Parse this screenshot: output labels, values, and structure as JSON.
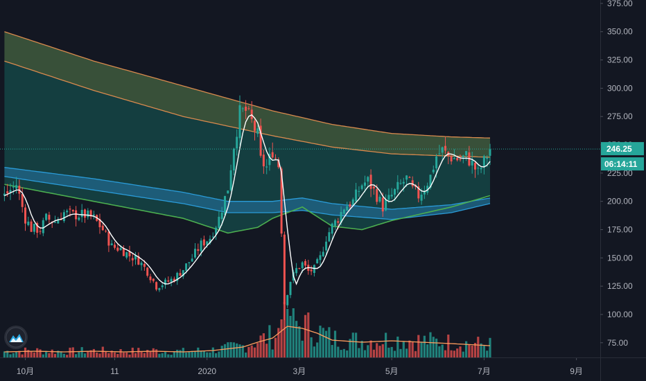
{
  "chart_data": {
    "type": "candlestick",
    "title": "",
    "xlabel": "",
    "ylabel": "",
    "ylim": [
      62,
      378
    ],
    "y_ticks": [
      "375.00",
      "350.00",
      "325.00",
      "300.00",
      "275.00",
      "250.00",
      "225.00",
      "200.00",
      "175.00",
      "150.00",
      "125.00",
      "100.00",
      "75.00"
    ],
    "y_tick_values": [
      375,
      350,
      325,
      300,
      275,
      250,
      225,
      200,
      175,
      150,
      125,
      100,
      75
    ],
    "x_ticks": [
      {
        "label": "10月",
        "t": 7
      },
      {
        "label": "11",
        "t": 37
      },
      {
        "label": "2020",
        "t": 68
      },
      {
        "label": "3月",
        "t": 99
      },
      {
        "label": "5月",
        "t": 130
      },
      {
        "label": "7月",
        "t": 161
      },
      {
        "label": "9月",
        "t": 192
      }
    ],
    "last_price": {
      "label": "246.25",
      "value": 246.25
    },
    "countdown": "06:14:11",
    "grid": false,
    "colors": {
      "background": "#131722",
      "up": "#26a69a",
      "down": "#ef5350",
      "upper_band_fill": "#3f5a3d",
      "upper_band_line": "#d98a4e",
      "mid_fill": "#154545",
      "blue_band_fill": "#1e5f7e",
      "blue_band_line": "#2a9bd8",
      "green_band_line": "#4caf50",
      "ma_line": "#ffffff",
      "volume_ma": "#ff9e5e",
      "price_badge": "#26a69a"
    },
    "series": [
      {
        "role": "close",
        "points": [
          [
            0,
            205
          ],
          [
            4,
            215
          ],
          [
            7,
            185
          ],
          [
            9,
            176
          ],
          [
            12,
            175
          ],
          [
            14,
            185
          ],
          [
            17,
            182
          ],
          [
            20,
            190
          ],
          [
            23,
            188
          ],
          [
            27,
            188
          ],
          [
            30,
            185
          ],
          [
            33,
            175
          ],
          [
            36,
            160
          ],
          [
            39,
            158
          ],
          [
            42,
            152
          ],
          [
            45,
            148
          ],
          [
            48,
            138
          ],
          [
            51,
            125
          ],
          [
            54,
            128
          ],
          [
            57,
            132
          ],
          [
            60,
            140
          ],
          [
            63,
            150
          ],
          [
            66,
            162
          ],
          [
            69,
            168
          ],
          [
            72,
            185
          ],
          [
            75,
            212
          ],
          [
            77,
            250
          ],
          [
            79,
            278
          ],
          [
            81,
            280
          ],
          [
            83,
            270
          ],
          [
            85,
            258
          ],
          [
            86,
            236
          ],
          [
            88,
            230
          ],
          [
            90,
            245
          ],
          [
            92,
            232
          ],
          [
            93,
            175
          ],
          [
            94,
            110
          ],
          [
            96,
            130
          ],
          [
            98,
            140
          ],
          [
            100,
            145
          ],
          [
            102,
            138
          ],
          [
            104,
            140
          ],
          [
            106,
            150
          ],
          [
            108,
            168
          ],
          [
            110,
            178
          ],
          [
            112,
            185
          ],
          [
            114,
            195
          ],
          [
            117,
            200
          ],
          [
            120,
            215
          ],
          [
            122,
            218
          ],
          [
            125,
            205
          ],
          [
            127,
            195
          ],
          [
            130,
            205
          ],
          [
            132,
            212
          ],
          [
            135,
            220
          ],
          [
            137,
            210
          ],
          [
            139,
            205
          ],
          [
            141,
            212
          ],
          [
            143,
            222
          ],
          [
            145,
            240
          ],
          [
            147,
            245
          ],
          [
            149,
            240
          ],
          [
            151,
            238
          ],
          [
            153,
            237
          ],
          [
            155,
            240
          ],
          [
            157,
            233
          ],
          [
            159,
            225
          ],
          [
            161,
            235
          ],
          [
            163,
            246.25
          ]
        ]
      },
      {
        "role": "upper_band_top",
        "points": [
          [
            0,
            350
          ],
          [
            30,
            324
          ],
          [
            60,
            302
          ],
          [
            90,
            280
          ],
          [
            110,
            268
          ],
          [
            130,
            260
          ],
          [
            150,
            257
          ],
          [
            163,
            256
          ]
        ]
      },
      {
        "role": "upper_band_bottom",
        "points": [
          [
            0,
            324
          ],
          [
            30,
            298
          ],
          [
            60,
            275
          ],
          [
            90,
            258
          ],
          [
            110,
            248
          ],
          [
            130,
            242
          ],
          [
            150,
            240
          ],
          [
            163,
            239
          ]
        ]
      },
      {
        "role": "blue_band_top",
        "points": [
          [
            0,
            230
          ],
          [
            30,
            220
          ],
          [
            60,
            208
          ],
          [
            75,
            200
          ],
          [
            90,
            200
          ],
          [
            100,
            203
          ],
          [
            110,
            198
          ],
          [
            130,
            193
          ],
          [
            150,
            197
          ],
          [
            163,
            203
          ]
        ]
      },
      {
        "role": "blue_band_bottom",
        "points": [
          [
            0,
            222
          ],
          [
            30,
            210
          ],
          [
            60,
            198
          ],
          [
            75,
            190
          ],
          [
            90,
            190
          ],
          [
            100,
            192
          ],
          [
            110,
            188
          ],
          [
            130,
            184
          ],
          [
            150,
            190
          ],
          [
            163,
            198
          ]
        ]
      },
      {
        "role": "green_line",
        "points": [
          [
            0,
            215
          ],
          [
            30,
            200
          ],
          [
            60,
            185
          ],
          [
            75,
            172
          ],
          [
            85,
            177
          ],
          [
            90,
            185
          ],
          [
            100,
            195
          ],
          [
            110,
            178
          ],
          [
            120,
            175
          ],
          [
            130,
            183
          ],
          [
            150,
            195
          ],
          [
            163,
            205
          ]
        ]
      },
      {
        "role": "volume_ma",
        "points": [
          [
            0,
            8
          ],
          [
            10,
            9
          ],
          [
            20,
            8
          ],
          [
            30,
            9
          ],
          [
            40,
            8
          ],
          [
            50,
            9
          ],
          [
            60,
            8
          ],
          [
            70,
            10
          ],
          [
            80,
            15
          ],
          [
            85,
            22
          ],
          [
            90,
            28
          ],
          [
            95,
            45
          ],
          [
            100,
            42
          ],
          [
            105,
            35
          ],
          [
            110,
            25
          ],
          [
            120,
            22
          ],
          [
            130,
            24
          ],
          [
            140,
            22
          ],
          [
            150,
            20
          ],
          [
            163,
            17
          ]
        ]
      }
    ]
  },
  "ui": {
    "logo_icon": "tradingview-logo-icon"
  }
}
